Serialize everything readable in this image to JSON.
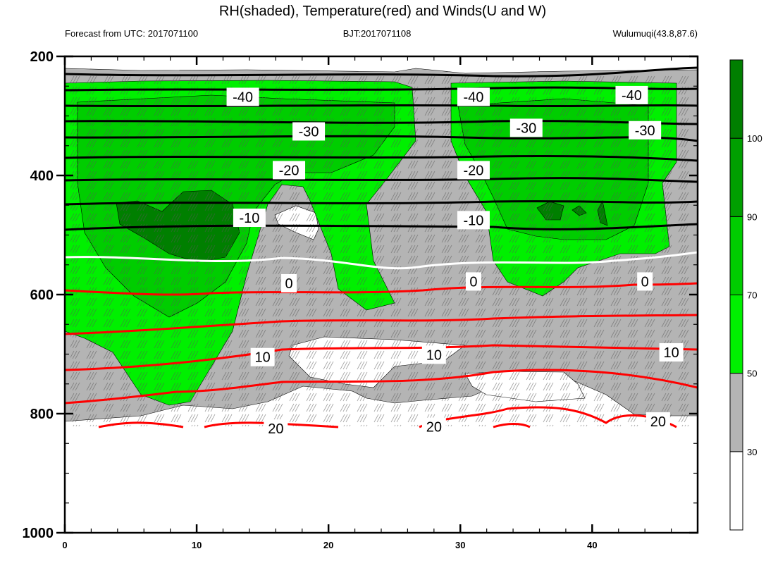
{
  "header": {
    "title": "RH(shaded), Temperature(red) and Winds(U and W)",
    "left_note": "Forecast from UTC: 2017071100",
    "center_note": "BJT:2017071108",
    "right_note": "Wulumuqi(43.8,87.6)"
  },
  "chart_data": {
    "type": "heatmap",
    "description_series": [
      "RH",
      "Temperature",
      "Winds"
    ],
    "x": {
      "range": [
        0,
        48
      ],
      "major_ticks": [
        0,
        10,
        20,
        30,
        40
      ],
      "tick_labels": [
        "0",
        "10",
        "20",
        "30",
        "40"
      ],
      "minor_step": 2
    },
    "y": {
      "range": [
        200,
        1000
      ],
      "inverted": true,
      "major_ticks": [
        200,
        400,
        600,
        800,
        1000
      ],
      "tick_labels": [
        "200",
        "400",
        "600",
        "800",
        "1000"
      ],
      "minor_step": 50
    },
    "colorbar": {
      "labels": [
        "30",
        "50",
        "70",
        "90",
        "100"
      ],
      "levels": [
        30,
        50,
        70,
        90,
        100
      ],
      "colors": [
        "#ffffff",
        "#b4b4b4",
        "#00f000",
        "#00cd00",
        "#009f00",
        "#007f00"
      ]
    },
    "colors": {
      "rh_white": "#ffffff",
      "rh_gray": "#b4b4b4",
      "rh_light_green": "#00f000",
      "rh_green": "#00cd00",
      "rh_dark_green": "#007f00",
      "temperature_line": "#ff0000",
      "freezing_line": "#ffffff",
      "negative_isotherm": "#000000"
    },
    "isotherm_labels": [
      {
        "text": "-40",
        "x": 13.5,
        "p": 268
      },
      {
        "text": "-40",
        "x": 31.0,
        "p": 268
      },
      {
        "text": "-40",
        "x": 43.0,
        "p": 265
      },
      {
        "text": "-30",
        "x": 18.5,
        "p": 326
      },
      {
        "text": "-30",
        "x": 35.0,
        "p": 320
      },
      {
        "text": "-30",
        "x": 44.0,
        "p": 324
      },
      {
        "text": "-20",
        "x": 17.0,
        "p": 391
      },
      {
        "text": "-20",
        "x": 31.0,
        "p": 391
      },
      {
        "text": "-10",
        "x": 14.0,
        "p": 471
      },
      {
        "text": "-10",
        "x": 31.0,
        "p": 475
      },
      {
        "text": "0",
        "x": 17.0,
        "p": 581
      },
      {
        "text": "0",
        "x": 31.0,
        "p": 578
      },
      {
        "text": "0",
        "x": 44.0,
        "p": 578
      },
      {
        "text": "10",
        "x": 15.0,
        "p": 705
      },
      {
        "text": "10",
        "x": 28.0,
        "p": 701
      },
      {
        "text": "10",
        "x": 46.0,
        "p": 697
      },
      {
        "text": "20",
        "x": 16.0,
        "p": 825
      },
      {
        "text": "20",
        "x": 28.0,
        "p": 822
      },
      {
        "text": "20",
        "x": 45.0,
        "p": 813
      }
    ]
  }
}
